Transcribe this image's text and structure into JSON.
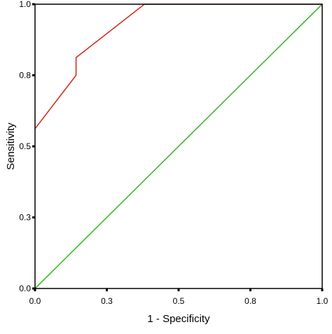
{
  "chart_data": {
    "type": "line",
    "title": "",
    "xlabel": "1 - Specificity",
    "ylabel": "Sensitivity",
    "xlim": [
      0,
      1
    ],
    "ylim": [
      0,
      1
    ],
    "x_ticks": [
      0,
      0.25,
      0.5,
      0.75,
      1
    ],
    "x_tick_labels": [
      "0.0",
      "0.3",
      "0.5",
      "0.8",
      "1.0"
    ],
    "y_ticks": [
      0,
      0.25,
      0.5,
      0.75,
      1
    ],
    "y_tick_labels": [
      "0.0",
      "0.3",
      "0.5",
      "0.8",
      "1.0"
    ],
    "grid": false,
    "legend": "none",
    "series": [
      {
        "color": "#d03020",
        "x": [
          0,
          0.143,
          0.143,
          0.381,
          1.0
        ],
        "y": [
          0.562,
          0.75,
          0.812,
          1.0,
          1.0
        ]
      },
      {
        "color": "#40b830",
        "x": [
          0,
          1
        ],
        "y": [
          0,
          1
        ]
      }
    ]
  }
}
